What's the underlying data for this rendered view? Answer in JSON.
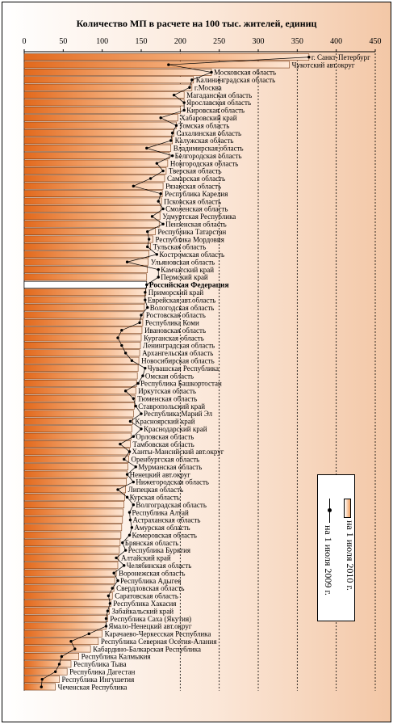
{
  "chart_data": {
    "type": "bar",
    "title": "Количество МП в расчете на 100 тыс. жителей, единиц",
    "xlim": [
      0,
      450
    ],
    "xticks": [
      0,
      50,
      100,
      150,
      200,
      250,
      300,
      350,
      400,
      450
    ],
    "grid": "dashed vertical at 200-450",
    "legend_placement": "lower-right",
    "highlight": "Российская Федерация",
    "series": [
      {
        "name": "на 1 июля 2010 г.",
        "kind": "bar"
      },
      {
        "name": "на 1 июля 2009 г.",
        "kind": "line"
      }
    ],
    "categories": [
      "г. Санкт-Петербург",
      "Чукотский авт.округ",
      "Московская область",
      "Калининградская область",
      "г.Москва",
      "Магаданская область",
      "Ярославская область",
      "Кировская область",
      "Хабаровский край",
      "Томская область",
      "Сахалинская область",
      "Калужская область",
      "Владимирская область",
      "Белгородская область",
      "Новгородская область",
      "Тверская область",
      "Самарская область",
      "Рязанская область",
      "Республика Карелия",
      "Псковская область",
      "Смоленская область",
      "Удмуртская Республика",
      "Пензенская область",
      "Республика Татарстан",
      "Республика Мордовия",
      "Тульская область",
      "Костромская область",
      "Ульяновская область",
      "Камчатский край",
      "Пермский край",
      "Российская Федерация",
      "Приморский край",
      "Еврейская авт.область",
      "Вологодская область",
      "Ростовская область",
      "Республика Коми",
      "Ивановская область",
      "Курганская область",
      "Ленинградская область",
      "Архангельская область",
      "Новосибирская область",
      "Чувашская Республика",
      "Омская область",
      "Республика Башкортостан",
      "Иркутская область",
      "Тюменская область",
      "Ставропольский край",
      "Республика Марий Эл",
      "Красноярский край",
      "Краснодарский край",
      "Орловская область",
      "Тамбовская область",
      "Ханты-Мансийский авт.округ",
      "Оренбургская область",
      "Мурманская область",
      "Ненецкий авт.округ",
      "Нижегородская область",
      "Липецкая область",
      "Курская область",
      "Волгоградская область",
      "Республика Алтай",
      "Астраханская область",
      "Амурская область",
      "Кемеровская область",
      "Брянская область",
      "Республика Бурятия",
      "Алтайский край",
      "Челябинская область",
      "Воронежская область",
      "Республика Адыгея",
      "Свердловская область",
      "Саратовская область",
      "Республика Хакасия",
      "Забайкальский край",
      "Республика Саха (Якутия)",
      "Ямало-Ненецкий авт.округ",
      "Карачаево-Черкесская Республика",
      "Республика Северная Осетия-Алания",
      "Кабардино-Балкарская Республика",
      "Республика Калмыкия",
      "Республика Тыва",
      "Республика Дагестан",
      "Республика Ингушетия",
      "Чеченская Республика"
    ],
    "values_2010": [
      365,
      340,
      240,
      217,
      215,
      205,
      205,
      200,
      197,
      195,
      192,
      190,
      188,
      186,
      184,
      182,
      180,
      178,
      177,
      176,
      175,
      174,
      173,
      168,
      165,
      162,
      160,
      159,
      158,
      157,
      157,
      156,
      155,
      154,
      153,
      152,
      151,
      150,
      149,
      148,
      147,
      146,
      145,
      144,
      143,
      142,
      141,
      140,
      139,
      138,
      137,
      136,
      135,
      134,
      133,
      132,
      131,
      130,
      129,
      128,
      127,
      126,
      125,
      124,
      123,
      122,
      121,
      120,
      118,
      116,
      115,
      113,
      111,
      109,
      107,
      105,
      100,
      95,
      85,
      70,
      60,
      55,
      45,
      40
    ],
    "values_2009": [
      365,
      185,
      240,
      215,
      212,
      192,
      205,
      205,
      175,
      195,
      190,
      188,
      157,
      190,
      170,
      178,
      162,
      140,
      175,
      172,
      178,
      164,
      178,
      158,
      160,
      158,
      170,
      132,
      172,
      172,
      157,
      155,
      155,
      158,
      150,
      148,
      125,
      120,
      125,
      130,
      138,
      155,
      152,
      146,
      130,
      140,
      143,
      150,
      136,
      150,
      140,
      123,
      135,
      128,
      143,
      132,
      140,
      120,
      132,
      140,
      135,
      136,
      138,
      135,
      126,
      130,
      118,
      128,
      115,
      120,
      113,
      108,
      110,
      107,
      105,
      105,
      83,
      60,
      65,
      48,
      45,
      40,
      23,
      22
    ]
  }
}
